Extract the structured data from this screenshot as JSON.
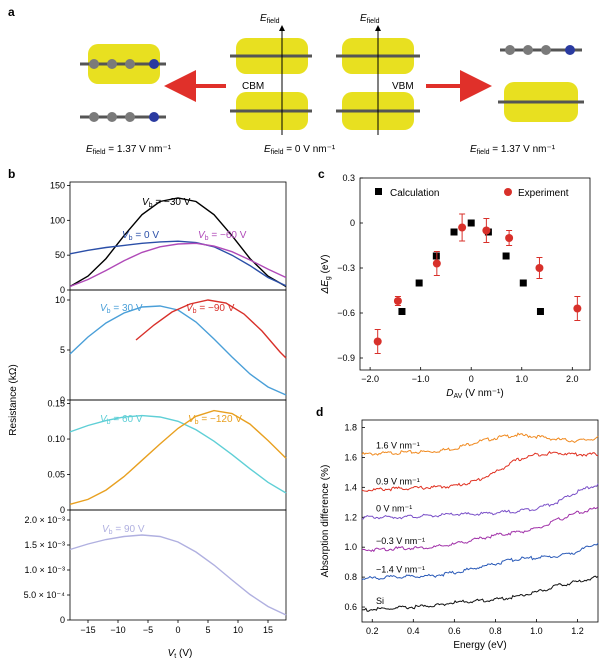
{
  "panels": {
    "a": {
      "letter": "a",
      "field_label_left": "E",
      "field_label_sub": "field",
      "field_value_left": " = 1.37 V nm⁻¹",
      "field_value_center": " = 0 V nm⁻¹",
      "field_value_right": " = 1.37 V nm⁻¹",
      "cbm_label": "CBM",
      "vbm_label": "VBM",
      "arrow_axis_label": "E",
      "arrow_axis_sub": "field",
      "colors": {
        "density": "#e8e020",
        "arrow": "#e0302a",
        "atom_c": "#7a7a7a",
        "atom_n": "#2a3aa0"
      }
    },
    "b": {
      "letter": "b",
      "ylabel": "Resistance (kΩ)",
      "xlabel_main": "V",
      "xlabel_sub": "t",
      "xlabel_unit": " (V)"
    },
    "c": {
      "letter": "c"
    },
    "d": {
      "letter": "d"
    }
  },
  "chart_data": [
    {
      "id": "b1",
      "type": "line",
      "xlim": [
        -18,
        18
      ],
      "ylim": [
        0,
        155
      ],
      "yticks": [
        "0",
        "50",
        "100",
        "150"
      ],
      "series": [
        {
          "name": "V_b = −30 V",
          "label_main": "V",
          "label_sub": "b",
          "label_rest": " = −30 V",
          "color": "#000000",
          "x": [
            -18,
            -15,
            -12,
            -9,
            -6,
            -3,
            0,
            3,
            6,
            9,
            12,
            15,
            18
          ],
          "y": [
            5,
            20,
            45,
            78,
            108,
            127,
            132,
            127,
            108,
            78,
            45,
            20,
            5
          ]
        },
        {
          "name": "V_b = 0 V",
          "label_main": "V",
          "label_sub": "b",
          "label_rest": " = 0 V",
          "color": "#2b4fa8",
          "x": [
            -18,
            -15,
            -12,
            -9,
            -6,
            -3,
            0,
            3,
            6,
            9,
            12,
            15,
            18
          ],
          "y": [
            52,
            57,
            61,
            64,
            67,
            69,
            70,
            68,
            62,
            50,
            35,
            18,
            6
          ]
        },
        {
          "name": "V_b = −60 V",
          "label_main": "V",
          "label_sub": "b",
          "label_rest": " = −60 V",
          "color": "#b04ab8",
          "x": [
            -18,
            -15,
            -12,
            -9,
            -6,
            -3,
            0,
            3,
            6,
            9,
            12,
            15,
            18
          ],
          "y": [
            5,
            15,
            28,
            42,
            54,
            62,
            66,
            67,
            63,
            55,
            43,
            30,
            18
          ]
        }
      ]
    },
    {
      "id": "b2",
      "type": "line",
      "xlim": [
        -18,
        18
      ],
      "ylim": [
        0,
        11
      ],
      "yticks": [
        "0",
        "5",
        "10"
      ],
      "series": [
        {
          "name": "V_b = 30 V",
          "label_main": "V",
          "label_sub": "b",
          "label_rest": " = 30 V",
          "color": "#4a9fd8",
          "x": [
            -18,
            -15,
            -12,
            -9,
            -6,
            -3,
            0,
            3,
            6,
            9,
            12,
            15,
            18
          ],
          "y": [
            4.6,
            6.3,
            7.7,
            8.7,
            9.3,
            9.4,
            9.0,
            7.8,
            6.1,
            4.3,
            2.6,
            1.3,
            0.5
          ]
        },
        {
          "name": "V_b = −90 V",
          "label_main": "V",
          "label_sub": "b",
          "label_rest": " = −90 V",
          "color": "#d8302a",
          "x": [
            -7,
            -4,
            -1,
            2,
            5,
            8,
            11,
            14,
            17,
            18
          ],
          "y": [
            6.0,
            7.5,
            8.8,
            9.6,
            10.0,
            9.7,
            8.6,
            6.9,
            4.8,
            4.2
          ]
        }
      ]
    },
    {
      "id": "b3",
      "type": "line",
      "xlim": [
        -18,
        18
      ],
      "ylim": [
        0,
        0.155
      ],
      "yticks": [
        "0",
        "0.05",
        "0.10",
        "0.15"
      ],
      "series": [
        {
          "name": "V_b = 60 V",
          "label_main": "V",
          "label_sub": "b",
          "label_rest": " = 60 V",
          "color": "#5fcfd6",
          "x": [
            -18,
            -15,
            -12,
            -9,
            -6,
            -3,
            0,
            3,
            6,
            9,
            12,
            15,
            18
          ],
          "y": [
            0.11,
            0.119,
            0.126,
            0.131,
            0.133,
            0.131,
            0.125,
            0.113,
            0.097,
            0.078,
            0.058,
            0.039,
            0.024
          ]
        },
        {
          "name": "V_b = −120 V",
          "label_main": "V",
          "label_sub": "b",
          "label_rest": " = −120 V",
          "color": "#e8a020",
          "x": [
            -18,
            -15,
            -12,
            -9,
            -6,
            -3,
            0,
            3,
            6,
            9,
            12,
            15,
            18
          ],
          "y": [
            0.008,
            0.015,
            0.028,
            0.047,
            0.07,
            0.093,
            0.115,
            0.132,
            0.14,
            0.136,
            0.121,
            0.098,
            0.073
          ]
        }
      ]
    },
    {
      "id": "b4",
      "type": "line",
      "xlim": [
        -18,
        18
      ],
      "ylim": [
        0,
        0.0022
      ],
      "yticks": [
        "0",
        "5.0 × 10⁻⁴",
        "1.0 × 10⁻³",
        "1.5 × 10⁻³",
        "2.0 × 10⁻³"
      ],
      "xticks": [
        "−15",
        "−10",
        "−5",
        "0",
        "5",
        "10",
        "15"
      ],
      "series": [
        {
          "name": "V_b = 90 V",
          "label_main": "V",
          "label_sub": "b",
          "label_rest": " = 90 V",
          "color": "#b0b0e0",
          "x": [
            -18,
            -15,
            -12,
            -9,
            -6,
            -3,
            0,
            3,
            6,
            9,
            12,
            15,
            18
          ],
          "y": [
            0.00141,
            0.00152,
            0.00161,
            0.00167,
            0.0017,
            0.00167,
            0.00156,
            0.00136,
            0.0011,
            0.0008,
            0.00051,
            0.00027,
            0.0001
          ]
        }
      ]
    },
    {
      "id": "c",
      "type": "scatter",
      "xlabel_main": "D",
      "xlabel_sub": "AV",
      "xlabel_rest": " (V nm⁻¹)",
      "ylabel_main": "ΔE",
      "ylabel_sub": "g",
      "ylabel_rest": " (eV)",
      "xlim": [
        -2.2,
        2.35
      ],
      "ylim": [
        -0.98,
        0.3
      ],
      "xticks": [
        "−2.0",
        "−1.0",
        "0",
        "1.0",
        "2.0"
      ],
      "yticks": [
        "0.3",
        "0",
        "−0.3",
        "−0.6",
        "−0.9"
      ],
      "legend": {
        "position": "top",
        "calculation": "Calculation",
        "experiment": "Experiment"
      },
      "calculation": {
        "name": "Calculation",
        "color": "#000000",
        "x": [
          -1.37,
          -1.03,
          -0.69,
          -0.34,
          0,
          0.34,
          0.69,
          1.03,
          1.37
        ],
        "y": [
          -0.59,
          -0.4,
          -0.22,
          -0.06,
          0,
          -0.06,
          -0.22,
          -0.4,
          -0.59
        ]
      },
      "experiment": {
        "name": "Experiment",
        "color": "#d8302a",
        "x": [
          -1.85,
          -1.45,
          -0.68,
          -0.18,
          0.3,
          0.75,
          1.35,
          2.1
        ],
        "y": [
          -0.79,
          -0.52,
          -0.27,
          -0.03,
          -0.05,
          -0.1,
          -0.3,
          -0.57
        ],
        "err": [
          0.08,
          0.03,
          0.08,
          0.09,
          0.08,
          0.05,
          0.07,
          0.08
        ]
      }
    },
    {
      "id": "d",
      "type": "line",
      "xlabel": "Energy (eV)",
      "ylabel": "Absorption difference (%)",
      "xlim": [
        0.15,
        1.3
      ],
      "ylim": [
        0.5,
        1.85
      ],
      "xticks": [
        "0.2",
        "0.4",
        "0.6",
        "0.8",
        "1.0",
        "1.2"
      ],
      "yticks": [
        "0.6",
        "0.8",
        "1.0",
        "1.2",
        "1.4",
        "1.6",
        "1.8"
      ],
      "series": [
        {
          "name": "1.6 V nm⁻¹",
          "color": "#f08a20",
          "x": [
            0.15,
            0.3,
            0.5,
            0.6,
            0.7,
            0.8,
            0.9,
            1.0,
            1.1,
            1.2,
            1.3
          ],
          "y": [
            1.62,
            1.63,
            1.64,
            1.66,
            1.7,
            1.73,
            1.75,
            1.74,
            1.72,
            1.71,
            1.73
          ]
        },
        {
          "name": "0.9 V nm⁻¹",
          "color": "#e03020",
          "x": [
            0.15,
            0.3,
            0.5,
            0.6,
            0.7,
            0.8,
            0.9,
            1.0,
            1.1,
            1.2,
            1.3
          ],
          "y": [
            1.38,
            1.39,
            1.4,
            1.41,
            1.44,
            1.5,
            1.58,
            1.62,
            1.63,
            1.62,
            1.62
          ]
        },
        {
          "name": "0 V nm⁻¹",
          "color": "#7a50c8",
          "x": [
            0.15,
            0.3,
            0.5,
            0.6,
            0.7,
            0.8,
            0.9,
            1.0,
            1.1,
            1.2,
            1.3
          ],
          "y": [
            1.2,
            1.2,
            1.21,
            1.22,
            1.22,
            1.23,
            1.24,
            1.26,
            1.3,
            1.37,
            1.42
          ]
        },
        {
          "name": "−0.3 V nm⁻¹",
          "color": "#a030a8",
          "x": [
            0.15,
            0.3,
            0.5,
            0.6,
            0.7,
            0.8,
            0.9,
            1.0,
            1.1,
            1.2,
            1.3
          ],
          "y": [
            0.98,
            0.99,
            1.0,
            1.02,
            1.05,
            1.08,
            1.1,
            1.12,
            1.18,
            1.23,
            1.26
          ]
        },
        {
          "name": "−1.4 V nm⁻¹",
          "color": "#2a5ab8",
          "x": [
            0.15,
            0.3,
            0.5,
            0.6,
            0.7,
            0.8,
            0.9,
            1.0,
            1.1,
            1.2,
            1.3
          ],
          "y": [
            0.79,
            0.8,
            0.81,
            0.83,
            0.86,
            0.89,
            0.92,
            0.93,
            0.94,
            0.97,
            1.03
          ]
        },
        {
          "name": "Si",
          "color": "#111111",
          "x": [
            0.15,
            0.3,
            0.5,
            0.6,
            0.7,
            0.8,
            0.9,
            1.0,
            1.1,
            1.2,
            1.3
          ],
          "y": [
            0.58,
            0.59,
            0.61,
            0.63,
            0.64,
            0.65,
            0.67,
            0.7,
            0.74,
            0.77,
            0.8
          ]
        }
      ]
    }
  ]
}
